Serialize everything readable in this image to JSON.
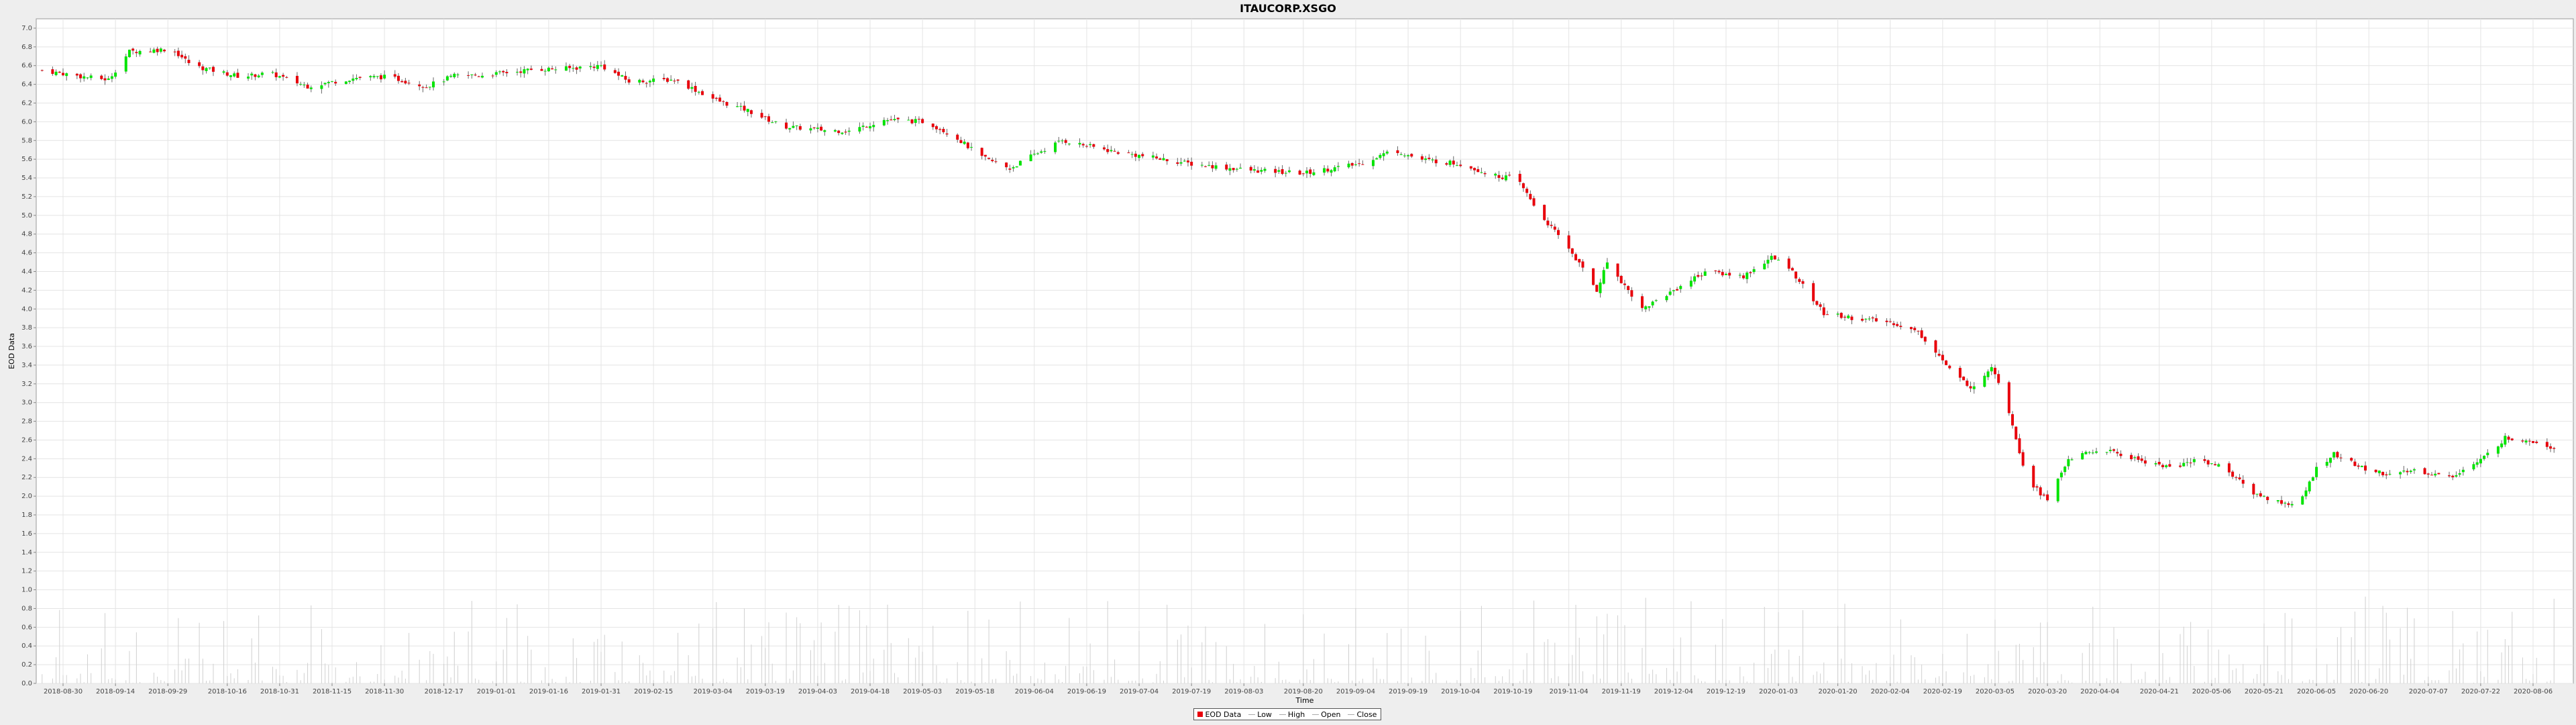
{
  "chart_data": {
    "type": "candlestick",
    "title": "ITAUCORP.XSGO",
    "xlabel": "Time",
    "ylabel": "EOD Data",
    "ylim": [
      0,
      7.1
    ],
    "yticks": [
      0.0,
      0.2,
      0.4,
      0.6,
      0.8,
      1.0,
      1.2,
      1.4,
      1.6,
      1.8,
      2.0,
      2.2,
      2.4,
      2.6,
      2.8,
      3.0,
      3.2,
      3.4,
      3.6,
      3.8,
      4.0,
      4.2,
      4.4,
      4.6,
      4.8,
      5.0,
      5.2,
      5.4,
      5.6,
      5.8,
      6.0,
      6.2,
      6.4,
      6.6,
      6.8,
      7.0
    ],
    "xtick_labels": [
      "2018-08-30",
      "2018-09-14",
      "2018-09-29",
      "2018-10-16",
      "2018-10-31",
      "2018-11-15",
      "2018-11-30",
      "2018-12-17",
      "2019-01-01",
      "2019-01-16",
      "2019-01-31",
      "2019-02-15",
      "2019-03-04",
      "2019-03-19",
      "2019-04-03",
      "2019-04-18",
      "2019-05-03",
      "2019-05-18",
      "2019-06-04",
      "2019-06-19",
      "2019-07-04",
      "2019-07-19",
      "2019-08-03",
      "2019-08-20",
      "2019-09-04",
      "2019-09-19",
      "2019-10-04",
      "2019-10-19",
      "2019-11-04",
      "2019-11-19",
      "2019-12-04",
      "2019-12-19",
      "2020-01-03",
      "2020-01-20",
      "2020-02-04",
      "2020-02-19",
      "2020-03-05",
      "2020-03-20",
      "2020-04-04",
      "2020-04-21",
      "2020-05-06",
      "2020-05-21",
      "2020-06-05",
      "2020-06-20",
      "2020-07-07",
      "2020-07-22",
      "2020-08-06"
    ],
    "close_series": {
      "x": [
        "2018-08-24",
        "2018-09-05",
        "2018-09-12",
        "2018-09-18",
        "2018-09-23",
        "2018-09-30",
        "2018-10-06",
        "2018-10-14",
        "2018-10-20",
        "2018-10-28",
        "2018-11-08",
        "2018-11-22",
        "2018-12-01",
        "2018-12-12",
        "2018-12-20",
        "2018-12-29",
        "2019-01-12",
        "2019-01-22",
        "2019-01-31",
        "2019-02-08",
        "2019-02-21",
        "2019-03-05",
        "2019-03-14",
        "2019-03-24",
        "2019-04-05",
        "2019-04-12",
        "2019-04-22",
        "2019-05-04",
        "2019-05-12",
        "2019-05-20",
        "2019-05-28",
        "2019-06-04",
        "2019-06-12",
        "2019-06-27",
        "2019-07-19",
        "2019-08-05",
        "2019-08-20",
        "2019-09-05",
        "2019-09-15",
        "2019-09-22",
        "2019-10-04",
        "2019-10-14",
        "2019-10-20",
        "2019-10-27",
        "2019-11-04",
        "2019-11-12",
        "2019-11-15",
        "2019-11-25",
        "2019-12-04",
        "2019-12-13",
        "2019-12-24",
        "2020-01-01",
        "2020-01-06",
        "2020-01-16",
        "2020-01-25",
        "2020-02-05",
        "2020-02-12",
        "2020-02-17",
        "2020-02-22",
        "2020-02-28",
        "2020-03-04",
        "2020-03-08",
        "2020-03-14",
        "2020-03-20",
        "2020-03-26",
        "2020-04-05",
        "2020-04-14",
        "2020-04-25",
        "2020-05-02",
        "2020-05-10",
        "2020-05-17",
        "2020-05-24",
        "2020-05-31",
        "2020-06-05",
        "2020-06-10",
        "2020-06-18",
        "2020-06-27",
        "2020-07-03",
        "2020-07-13",
        "2020-07-22",
        "2020-07-29",
        "2020-08-05",
        "2020-08-12"
      ],
      "y": [
        6.55,
        6.48,
        6.45,
        6.75,
        6.76,
        6.78,
        6.6,
        6.53,
        6.48,
        6.52,
        6.38,
        6.47,
        6.48,
        6.38,
        6.49,
        6.5,
        6.56,
        6.57,
        6.6,
        6.43,
        6.45,
        6.23,
        6.12,
        5.95,
        5.91,
        5.9,
        6.02,
        6.0,
        5.85,
        5.62,
        5.5,
        5.65,
        5.8,
        5.68,
        5.55,
        5.48,
        5.45,
        5.55,
        5.7,
        5.6,
        5.55,
        5.42,
        5.4,
        5.0,
        4.65,
        4.2,
        4.5,
        4.0,
        4.2,
        4.4,
        4.35,
        4.55,
        4.45,
        3.95,
        3.9,
        3.85,
        3.75,
        3.55,
        3.3,
        3.15,
        3.4,
        3.05,
        2.2,
        1.95,
        2.4,
        2.5,
        2.4,
        2.3,
        2.4,
        2.3,
        2.05,
        1.95,
        1.9,
        2.3,
        2.45,
        2.3,
        2.22,
        2.28,
        2.2,
        2.38,
        2.62,
        2.6,
        2.52
      ]
    },
    "volume_max": 0.95
  },
  "legend": {
    "items": [
      {
        "label": "EOD Data",
        "color": "#e8000b"
      },
      {
        "label": "Low",
        "color": "#aaaaaa"
      },
      {
        "label": "High",
        "color": "#aaaaaa"
      },
      {
        "label": "Open",
        "color": "#aaaaaa"
      },
      {
        "label": "Close",
        "color": "#aaaaaa"
      }
    ]
  },
  "colors": {
    "up": "#00e400",
    "down": "#e8000b",
    "grid": "#e4e4e4",
    "volume": "#d0d0d0"
  }
}
